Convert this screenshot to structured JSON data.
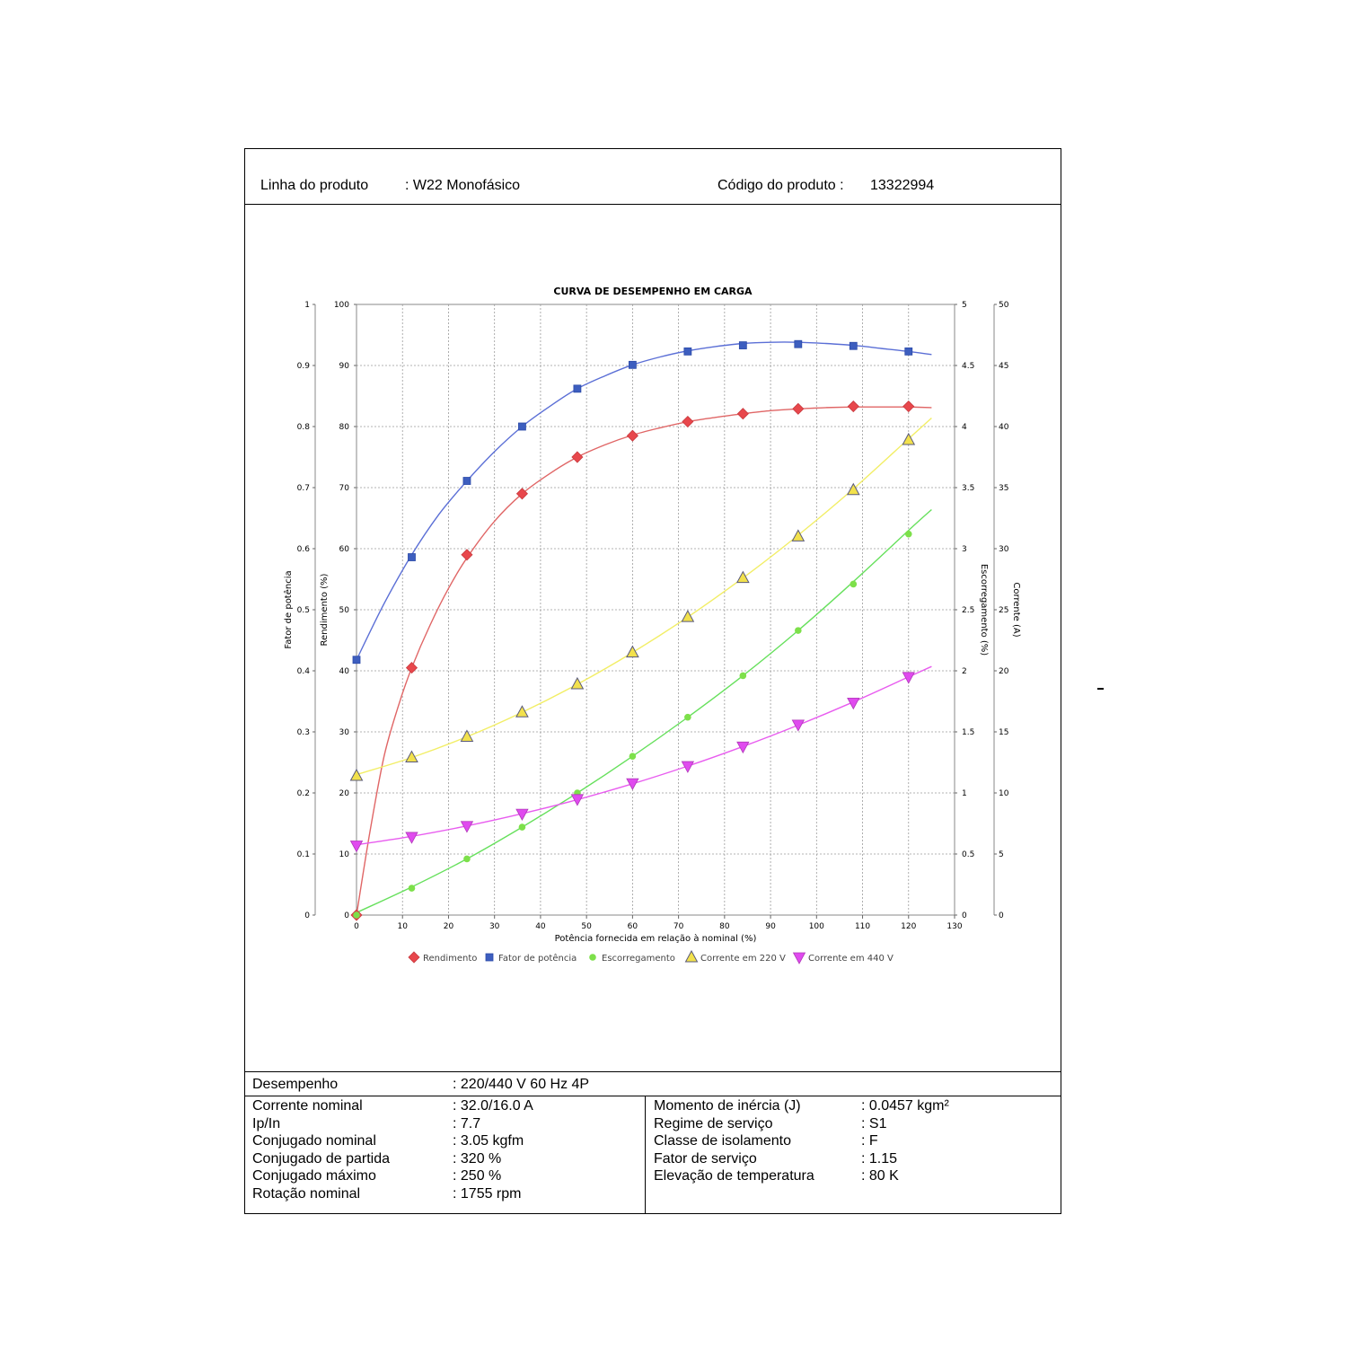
{
  "header": {
    "product_line_label": "Linha do produto",
    "product_line_value": ": W22 Monofásico",
    "product_code_label": "Código do produto :",
    "product_code_value": "13322994"
  },
  "performance": {
    "label": "Desempenho",
    "value": ": 220/440 V 60 Hz 4P"
  },
  "specs_left": [
    {
      "label": "Corrente nominal",
      "value": ": 32.0/16.0 A"
    },
    {
      "label": "Ip/In",
      "value": ": 7.7"
    },
    {
      "label": "Conjugado nominal",
      "value": ": 3.05 kgfm"
    },
    {
      "label": "Conjugado de partida",
      "value": ": 320 %"
    },
    {
      "label": "Conjugado máximo",
      "value": ": 250 %"
    },
    {
      "label": "Rotação nominal",
      "value": ": 1755 rpm"
    }
  ],
  "specs_right": [
    {
      "label": "Momento de inércia (J)",
      "value": ": 0.0457 kgm²"
    },
    {
      "label": "Regime de serviço",
      "value": ": S1"
    },
    {
      "label": "Classe de isolamento",
      "value": ": F"
    },
    {
      "label": "Fator de serviço",
      "value": ": 1.15"
    },
    {
      "label": "Elevação de temperatura",
      "value": ": 80 K"
    }
  ],
  "chart_data": {
    "type": "line",
    "title": "CURVA DE DESEMPENHO EM CARGA",
    "xlabel": "Potência fornecida em relação à nominal (%)",
    "xlim": [
      0,
      130
    ],
    "x_ticks": [
      0,
      10,
      20,
      30,
      40,
      50,
      60,
      70,
      80,
      90,
      100,
      110,
      120,
      130
    ],
    "grid": true,
    "legend_position": "bottom",
    "axes": {
      "power_factor": {
        "label": "Fator de potência",
        "side": "left-outer",
        "range": [
          0,
          1
        ],
        "ticks": [
          "0",
          "0.1",
          "0.2",
          "0.3",
          "0.4",
          "0.5",
          "0.6",
          "0.7",
          "0.8",
          "0.9",
          "1"
        ]
      },
      "efficiency": {
        "label": "Rendimento (%)",
        "side": "left-inner",
        "range": [
          0,
          100
        ],
        "ticks": [
          "0",
          "10",
          "20",
          "30",
          "40",
          "50",
          "60",
          "70",
          "80",
          "90",
          "100"
        ]
      },
      "slip": {
        "label": "Escorregamento (%)",
        "side": "right-inner",
        "range": [
          0,
          5
        ],
        "ticks": [
          "0",
          "0.5",
          "1",
          "1.5",
          "2",
          "2.5",
          "3",
          "3.5",
          "4",
          "4.5",
          "5"
        ]
      },
      "current": {
        "label": "Corrente (A)",
        "side": "right-outer",
        "range": [
          0,
          50
        ],
        "ticks": [
          "0",
          "5",
          "10",
          "15",
          "20",
          "25",
          "30",
          "35",
          "40",
          "45",
          "50"
        ]
      }
    },
    "series": [
      {
        "name": "Rendimento",
        "axis": "efficiency",
        "color": "#e8474c",
        "line_color": "#e06666",
        "marker": "diamond",
        "x": [
          0,
          12,
          24,
          36,
          48,
          60,
          72,
          84,
          96,
          108,
          120
        ],
        "values": [
          0,
          40.5,
          59,
          69,
          75,
          78.5,
          80.8,
          82.1,
          82.9,
          83.3,
          83.3
        ],
        "curve_x": [
          0,
          3,
          6,
          9,
          12,
          16,
          20,
          24,
          30,
          36,
          42,
          48,
          54,
          60,
          66,
          72,
          78,
          84,
          90,
          96,
          102,
          108,
          114,
          120,
          125
        ],
        "curve_y": [
          0,
          14,
          26,
          34,
          40.5,
          47.5,
          53.5,
          58.5,
          64.5,
          69,
          72.3,
          75,
          77,
          78.6,
          79.8,
          80.8,
          81.5,
          82.1,
          82.6,
          82.9,
          83.1,
          83.2,
          83.2,
          83.2,
          83.1
        ]
      },
      {
        "name": "Fator de potência",
        "axis": "power_factor",
        "color": "#3d5ebf",
        "line_color": "#5b6fd6",
        "marker": "square",
        "x": [
          0,
          12,
          24,
          36,
          48,
          60,
          72,
          84,
          96,
          108,
          120
        ],
        "values": [
          0.418,
          0.586,
          0.711,
          0.8,
          0.862,
          0.901,
          0.923,
          0.933,
          0.935,
          0.932,
          0.923
        ],
        "curve_x": [
          0,
          6,
          12,
          18,
          24,
          30,
          36,
          42,
          48,
          54,
          60,
          66,
          72,
          78,
          84,
          90,
          96,
          102,
          108,
          114,
          120,
          125
        ],
        "curve_y": [
          0.418,
          0.51,
          0.59,
          0.657,
          0.711,
          0.759,
          0.8,
          0.833,
          0.862,
          0.883,
          0.901,
          0.914,
          0.924,
          0.931,
          0.936,
          0.938,
          0.938,
          0.936,
          0.933,
          0.928,
          0.923,
          0.918
        ]
      },
      {
        "name": "Escorregamento",
        "axis": "slip",
        "color": "#7de04a",
        "line_color": "#66e05c",
        "marker": "circle",
        "x": [
          0,
          12,
          24,
          36,
          48,
          60,
          72,
          84,
          96,
          108,
          120
        ],
        "values": [
          0.0,
          0.22,
          0.46,
          0.72,
          1.0,
          1.3,
          1.62,
          1.96,
          2.33,
          2.71,
          3.12
        ],
        "curve_x": [
          0,
          12,
          24,
          36,
          48,
          60,
          72,
          84,
          96,
          108,
          120,
          125
        ],
        "curve_y": [
          0.02,
          0.23,
          0.46,
          0.72,
          1.0,
          1.3,
          1.62,
          1.96,
          2.33,
          2.73,
          3.15,
          3.32
        ]
      },
      {
        "name": "Corrente em 220 V",
        "axis": "current",
        "color": "#f2e14c",
        "line_color": "#f2ee66",
        "marker": "triangle-up",
        "x": [
          0,
          12,
          24,
          36,
          48,
          60,
          72,
          84,
          96,
          108,
          120
        ],
        "values": [
          11.4,
          12.9,
          14.6,
          16.6,
          18.9,
          21.5,
          24.4,
          27.6,
          31.0,
          34.8,
          38.9
        ],
        "curve_x": [
          0,
          12,
          24,
          36,
          48,
          60,
          72,
          84,
          96,
          108,
          120,
          125
        ],
        "curve_y": [
          11.5,
          12.9,
          14.6,
          16.6,
          18.9,
          21.5,
          24.4,
          27.6,
          31.1,
          34.9,
          39.0,
          40.7
        ]
      },
      {
        "name": "Corrente em 440 V",
        "axis": "current",
        "color": "#e04aef",
        "line_color": "#e85cef",
        "marker": "triangle-down",
        "x": [
          0,
          12,
          24,
          36,
          48,
          60,
          72,
          84,
          96,
          108,
          120
        ],
        "values": [
          5.7,
          6.4,
          7.3,
          8.3,
          9.5,
          10.8,
          12.2,
          13.8,
          15.6,
          17.4,
          19.5
        ],
        "curve_x": [
          0,
          12,
          24,
          36,
          48,
          60,
          72,
          84,
          96,
          108,
          120,
          125
        ],
        "curve_y": [
          5.75,
          6.45,
          7.3,
          8.3,
          9.45,
          10.75,
          12.2,
          13.8,
          15.55,
          17.45,
          19.5,
          20.35
        ]
      }
    ]
  }
}
